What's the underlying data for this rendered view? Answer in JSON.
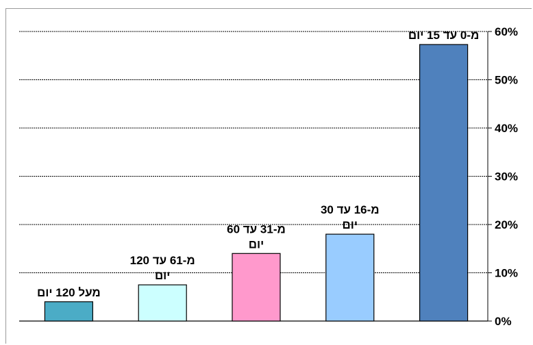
{
  "chart_data": {
    "type": "bar",
    "categories": [
      "מעל 120 יום",
      "מ-61 עד 120 יום",
      "מ-31 עד 60 יום",
      "מ-16 עד 30 יום",
      "מ-0 עד 15 יום"
    ],
    "category_label_lines": [
      [
        "מעל 120 יום"
      ],
      [
        "מ-61 עד 120",
        "יום"
      ],
      [
        "מ-31 עד 60",
        "יום"
      ],
      [
        "מ-16 עד 30",
        "יום"
      ],
      [
        "מ-0 עד 15 יום"
      ]
    ],
    "values": [
      4,
      7.5,
      14,
      18,
      57.3
    ],
    "colors": [
      "#4BACC6",
      "#CCFFFF",
      "#FF99CC",
      "#99CCFF",
      "#4F81BD"
    ],
    "title": "",
    "xlabel": "",
    "ylabel": "",
    "ylim": [
      0,
      60
    ],
    "yticks": [
      0,
      10,
      20,
      30,
      40,
      50,
      60
    ],
    "ytick_labels": [
      "0%",
      "10%",
      "20%",
      "30%",
      "40%",
      "50%",
      "60%"
    ],
    "y_axis_position": "right",
    "grid": true,
    "legend": "none"
  }
}
